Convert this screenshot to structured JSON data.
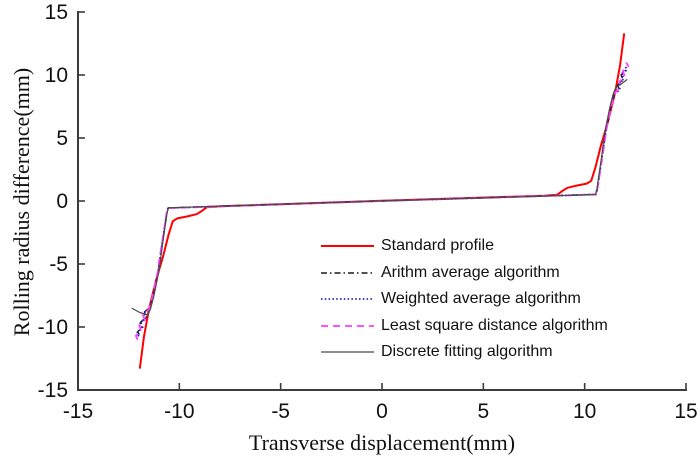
{
  "figure": {
    "background": "#ffffff",
    "axis_color": "#3c3c3c",
    "text_color": "#111111"
  },
  "chart_data": {
    "type": "line",
    "title": "",
    "xlabel": "Transverse displacement(mm)",
    "ylabel": "Rolling radius difference(mm)",
    "xlim": [
      -15,
      15
    ],
    "ylim": [
      -15,
      15
    ],
    "x_ticks": [
      -15,
      -10,
      -5,
      0,
      5,
      10,
      15
    ],
    "y_ticks": [
      -15,
      -10,
      -5,
      0,
      5,
      10,
      15
    ],
    "grid": false,
    "legend_position": "inside-bottom-center",
    "series": [
      {
        "name": "Standard profile",
        "color": "#ff0000",
        "style": "solid",
        "width": 2,
        "dash": "",
        "points": [
          [
            -11.95,
            -13.3
          ],
          [
            -11.75,
            -10.8
          ],
          [
            -11.5,
            -8.6
          ],
          [
            -11.15,
            -6.3
          ],
          [
            -10.8,
            -4.4
          ],
          [
            -10.52,
            -2.6
          ],
          [
            -10.32,
            -1.6
          ],
          [
            -10.1,
            -1.38
          ],
          [
            -9.6,
            -1.22
          ],
          [
            -9.15,
            -1.05
          ],
          [
            -8.9,
            -0.8
          ],
          [
            -8.65,
            -0.5
          ],
          [
            -8,
            -0.42
          ],
          [
            0,
            0.02
          ],
          [
            8,
            0.42
          ],
          [
            8.65,
            0.5
          ],
          [
            8.9,
            0.8
          ],
          [
            9.15,
            1.05
          ],
          [
            9.6,
            1.22
          ],
          [
            10.1,
            1.38
          ],
          [
            10.32,
            1.6
          ],
          [
            10.52,
            2.6
          ],
          [
            10.8,
            4.4
          ],
          [
            11.15,
            6.3
          ],
          [
            11.5,
            8.6
          ],
          [
            11.75,
            10.8
          ],
          [
            11.95,
            13.3
          ]
        ]
      },
      {
        "name": "Arithm average algorithm",
        "color": "#1a1a1a",
        "style": "dash-dot",
        "width": 1.5,
        "dash": "6 3 1.5 3",
        "points": [
          [
            -11.98,
            -10.6
          ],
          [
            -12.05,
            -10.35
          ],
          [
            -11.8,
            -10.0
          ],
          [
            -11.9,
            -9.6
          ],
          [
            -11.62,
            -9.2
          ],
          [
            -11.72,
            -8.8
          ],
          [
            -11.45,
            -8.45
          ],
          [
            -11.3,
            -7.6
          ],
          [
            -11.05,
            -5.6
          ],
          [
            -10.82,
            -3.2
          ],
          [
            -10.62,
            -0.95
          ],
          [
            -10.55,
            -0.55
          ],
          [
            0,
            0.01
          ],
          [
            10.55,
            0.52
          ],
          [
            10.62,
            0.95
          ],
          [
            10.82,
            3.2
          ],
          [
            11.05,
            5.6
          ],
          [
            11.3,
            7.6
          ],
          [
            11.45,
            8.45
          ],
          [
            11.72,
            8.8
          ],
          [
            11.62,
            9.2
          ],
          [
            11.9,
            9.6
          ],
          [
            11.8,
            10.0
          ],
          [
            12.05,
            10.35
          ],
          [
            11.98,
            10.6
          ]
        ]
      },
      {
        "name": "Weighted average algorithm",
        "color": "#2424cc",
        "style": "dotted",
        "width": 1.8,
        "dash": "1.5 2.3",
        "points": [
          [
            -12.0,
            -10.75
          ],
          [
            -12.08,
            -10.45
          ],
          [
            -11.83,
            -10.1
          ],
          [
            -11.93,
            -9.7
          ],
          [
            -11.65,
            -9.28
          ],
          [
            -11.75,
            -8.86
          ],
          [
            -11.47,
            -8.5
          ],
          [
            -11.32,
            -7.68
          ],
          [
            -11.06,
            -5.68
          ],
          [
            -10.84,
            -3.28
          ],
          [
            -10.63,
            -1.0
          ],
          [
            -10.56,
            -0.56
          ],
          [
            0,
            0.0
          ],
          [
            10.56,
            0.52
          ],
          [
            10.63,
            1.0
          ],
          [
            10.84,
            3.28
          ],
          [
            11.06,
            5.68
          ],
          [
            11.32,
            7.68
          ],
          [
            11.47,
            8.5
          ],
          [
            11.75,
            8.86
          ],
          [
            11.65,
            9.28
          ],
          [
            11.93,
            9.7
          ],
          [
            11.83,
            10.1
          ],
          [
            12.08,
            10.45
          ],
          [
            12.0,
            10.75
          ]
        ]
      },
      {
        "name": "Least square distance algorithm",
        "color": "#ff3dff",
        "style": "dashed",
        "width": 1.8,
        "dash": "7 5",
        "points": [
          [
            -12.05,
            -11.0
          ],
          [
            -12.15,
            -10.7
          ],
          [
            -11.88,
            -10.3
          ],
          [
            -11.98,
            -9.9
          ],
          [
            -11.7,
            -9.45
          ],
          [
            -11.8,
            -9.05
          ],
          [
            -11.5,
            -8.6
          ],
          [
            -11.35,
            -7.75
          ],
          [
            -11.08,
            -5.75
          ],
          [
            -10.86,
            -3.35
          ],
          [
            -10.64,
            -1.05
          ],
          [
            -10.57,
            -0.57
          ],
          [
            0,
            0.0
          ],
          [
            10.57,
            0.52
          ],
          [
            10.64,
            1.05
          ],
          [
            10.86,
            3.35
          ],
          [
            11.08,
            5.75
          ],
          [
            11.35,
            7.75
          ],
          [
            11.5,
            8.6
          ],
          [
            11.8,
            9.05
          ],
          [
            11.7,
            9.45
          ],
          [
            11.98,
            9.9
          ],
          [
            11.88,
            10.3
          ],
          [
            12.15,
            10.7
          ],
          [
            12.05,
            11.0
          ]
        ]
      },
      {
        "name": "Discrete fitting algorithm",
        "color": "#4a4a4a",
        "style": "solid",
        "width": 1.2,
        "dash": "",
        "points": [
          [
            -12.35,
            -8.5
          ],
          [
            -11.95,
            -8.85
          ],
          [
            -11.55,
            -9.05
          ],
          [
            -11.42,
            -8.55
          ],
          [
            -11.25,
            -7.5
          ],
          [
            -11.0,
            -5.5
          ],
          [
            -10.8,
            -3.1
          ],
          [
            -10.6,
            -0.9
          ],
          [
            -10.53,
            -0.54
          ],
          [
            0,
            0.01
          ],
          [
            10.53,
            0.51
          ],
          [
            10.6,
            0.9
          ],
          [
            10.8,
            3.1
          ],
          [
            11.0,
            5.5
          ],
          [
            11.25,
            7.5
          ],
          [
            11.42,
            8.55
          ],
          [
            11.55,
            9.05
          ],
          [
            11.82,
            9.3
          ],
          [
            12.1,
            9.65
          ]
        ]
      }
    ]
  }
}
